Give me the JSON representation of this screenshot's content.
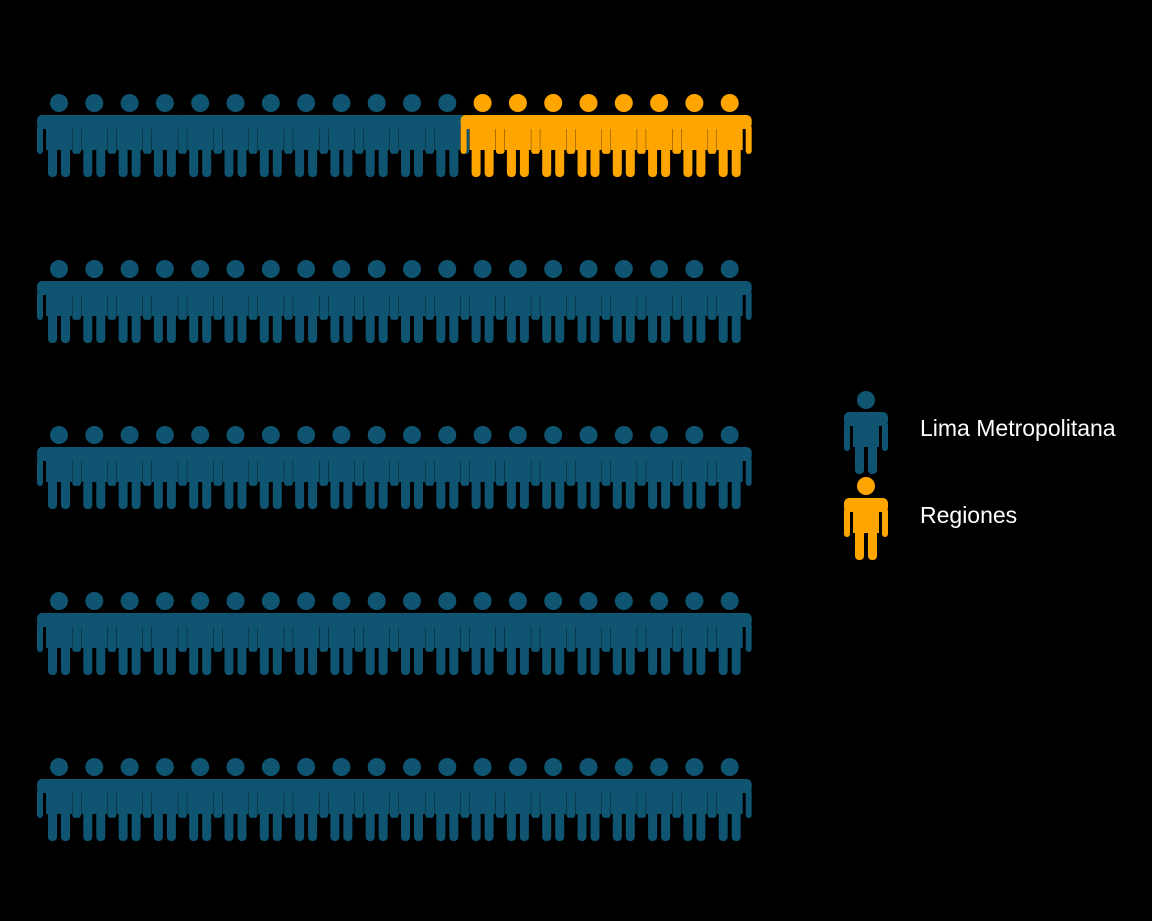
{
  "chart_data": {
    "type": "pictogram",
    "rows": 5,
    "icons_per_row": 20,
    "total_icons": 100,
    "series": [
      {
        "name": "Lima Metropolitana",
        "icon": "person-icon",
        "count": 92,
        "color": "#0f5470"
      },
      {
        "name": "Regiones",
        "icon": "person-icon",
        "count": 8,
        "color": "#ffa500"
      }
    ],
    "legend": {
      "position": "right",
      "items": [
        {
          "label": "Lima Metropolitana",
          "color": "#0f5470"
        },
        {
          "label": "Regiones",
          "color": "#ffa500"
        }
      ]
    },
    "background": "#000000"
  }
}
